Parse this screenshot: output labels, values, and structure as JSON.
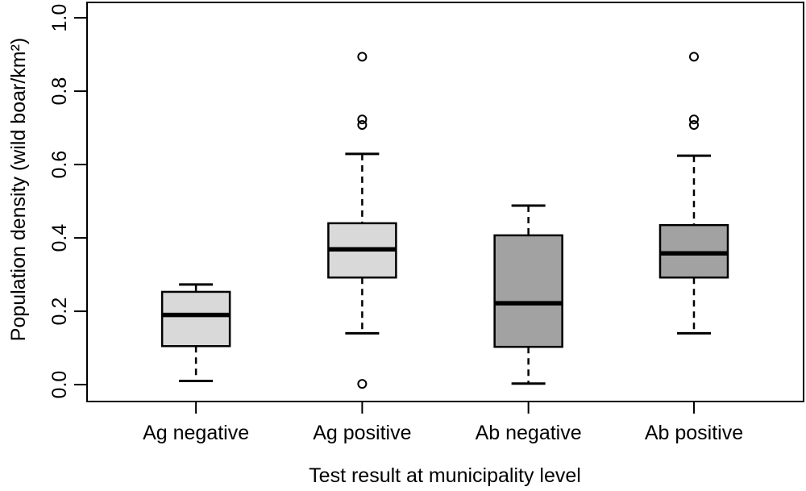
{
  "figure": {
    "background": "#ffffff"
  },
  "chart_data": {
    "type": "box",
    "title": "",
    "xlabel": "Test result at municipality level",
    "ylabel": "Population density (wild boar/km²)",
    "categories": [
      "Ag negative",
      "Ag positive",
      "Ab negative",
      "Ab positive"
    ],
    "yticks": [
      0.0,
      0.2,
      0.4,
      0.6,
      0.8,
      1.0
    ],
    "ytick_labels": [
      "0.0",
      "0.2",
      "0.4",
      "0.6",
      "0.8",
      "1.0"
    ],
    "ylim": [
      -0.046,
      1.042
    ],
    "grid": false,
    "legend": "none",
    "colors": {
      "ag_fill": "#d9d9d9",
      "ab_fill": "#a2a2a2",
      "line": "#000000",
      "background": "#ffffff"
    },
    "series": [
      {
        "name": "Ag negative",
        "whisker_low": 0.01,
        "q1": 0.105,
        "median": 0.19,
        "q3": 0.253,
        "whisker_high": 0.273,
        "outliers": [],
        "fill": "#d9d9d9"
      },
      {
        "name": "Ag positive",
        "whisker_low": 0.14,
        "q1": 0.292,
        "median": 0.369,
        "q3": 0.44,
        "whisker_high": 0.629,
        "outliers": [
          0.894,
          0.723,
          0.708,
          0.002
        ],
        "fill": "#d9d9d9"
      },
      {
        "name": "Ab negative",
        "whisker_low": 0.003,
        "q1": 0.103,
        "median": 0.222,
        "q3": 0.407,
        "whisker_high": 0.488,
        "outliers": [],
        "fill": "#a2a2a2"
      },
      {
        "name": "Ab positive",
        "whisker_low": 0.14,
        "q1": 0.292,
        "median": 0.358,
        "q3": 0.435,
        "whisker_high": 0.624,
        "outliers": [
          0.894,
          0.723,
          0.708
        ],
        "fill": "#a2a2a2"
      }
    ]
  }
}
